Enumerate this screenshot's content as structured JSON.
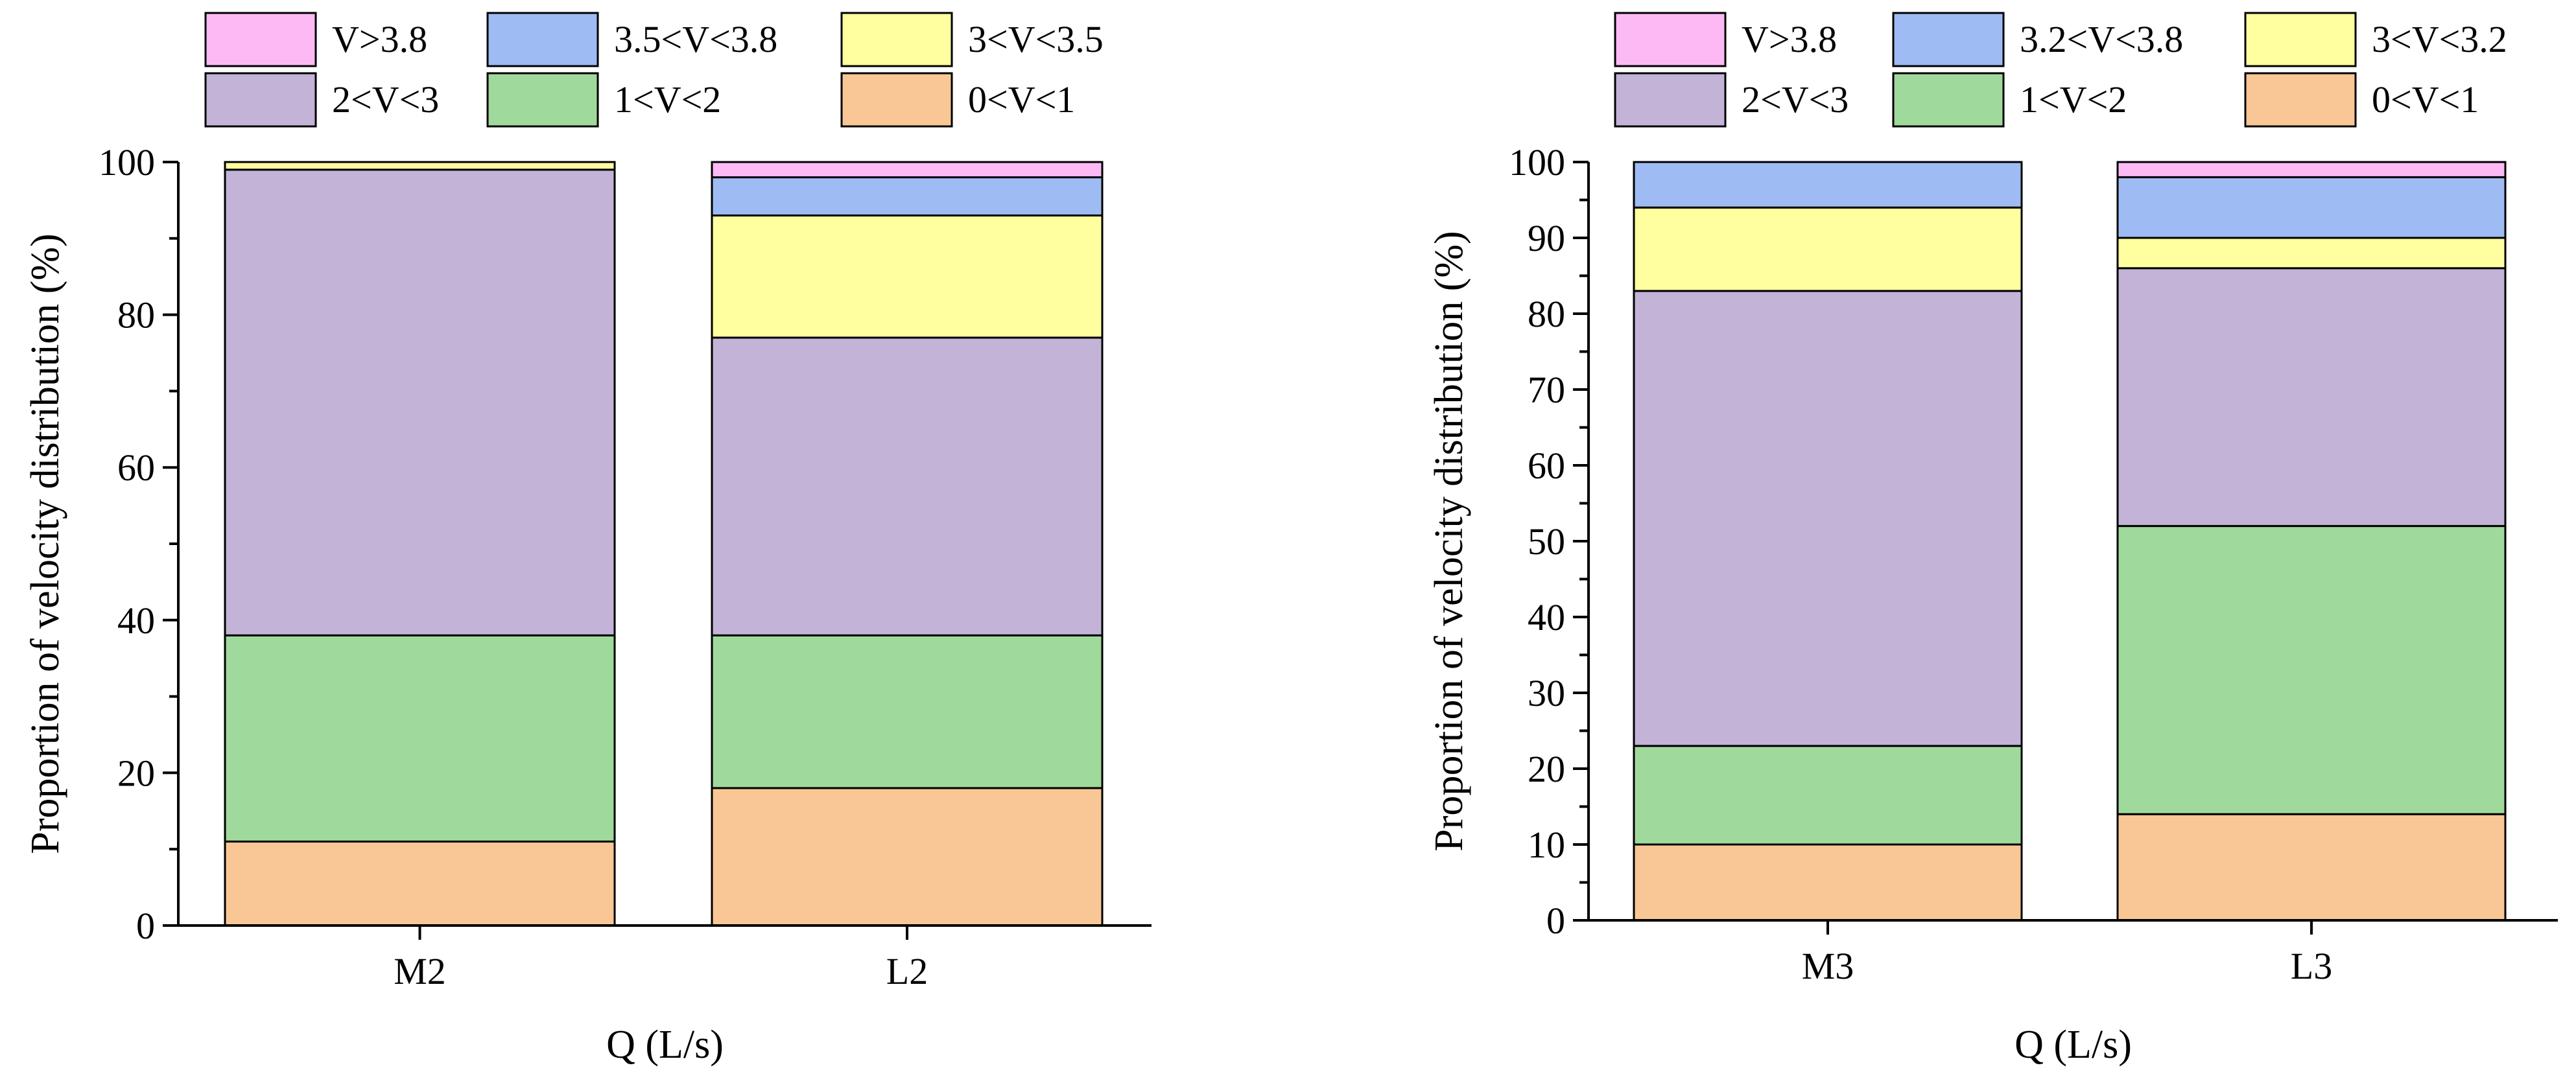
{
  "chart_data": [
    {
      "type": "bar",
      "stacked": true,
      "xlabel": "Q (L/s)",
      "ylabel": "Proportion of velocity distribution (%)",
      "categories": [
        "M2",
        "L2"
      ],
      "ylim": [
        0,
        100
      ],
      "yticks": [
        "0",
        "20",
        "40",
        "60",
        "80",
        "100"
      ],
      "ytick_values": [
        0,
        20,
        40,
        60,
        80,
        100
      ],
      "minor_tick_step": 10,
      "legend_order": [
        "V>3.8",
        "3.5<V<3.8",
        "3<V<3.5",
        "2<V<3",
        "1<V<2",
        "0<V<1"
      ],
      "series": [
        {
          "name": "0<V<1",
          "color": "#F9C795",
          "values": [
            11,
            18
          ]
        },
        {
          "name": "1<V<2",
          "color": "#A0D99C",
          "values": [
            27,
            20
          ]
        },
        {
          "name": "2<V<3",
          "color": "#C3B3D7",
          "values": [
            61,
            39
          ]
        },
        {
          "name": "3<V<3.5",
          "color": "#FFFF9F",
          "values": [
            1,
            16
          ]
        },
        {
          "name": "3.5<V<3.8",
          "color": "#9EBBF3",
          "values": [
            0,
            5
          ]
        },
        {
          "name": "V>3.8",
          "color": "#FDB9F4",
          "values": [
            0,
            2
          ]
        }
      ]
    },
    {
      "type": "bar",
      "stacked": true,
      "xlabel": "Q (L/s)",
      "ylabel": "Proportion of velocity distribution (%)",
      "categories": [
        "M3",
        "L3"
      ],
      "ylim": [
        0,
        100
      ],
      "yticks": [
        "0",
        "10",
        "20",
        "30",
        "40",
        "50",
        "60",
        "70",
        "80",
        "90",
        "100"
      ],
      "ytick_values": [
        0,
        10,
        20,
        30,
        40,
        50,
        60,
        70,
        80,
        90,
        100
      ],
      "minor_tick_step": 5,
      "legend_order": [
        "V>3.8",
        "3.2<V<3.8",
        "3<V<3.2",
        "2<V<3",
        "1<V<2",
        "0<V<1"
      ],
      "series": [
        {
          "name": "0<V<1",
          "color": "#F9C795",
          "values": [
            10,
            14
          ]
        },
        {
          "name": "1<V<2",
          "color": "#A0D99C",
          "values": [
            13,
            38
          ]
        },
        {
          "name": "2<V<3",
          "color": "#C3B3D7",
          "values": [
            60,
            34
          ]
        },
        {
          "name": "3<V<3.2",
          "color": "#FFFF9F",
          "values": [
            11,
            4
          ]
        },
        {
          "name": "3.2<V<3.8",
          "color": "#9EBBF3",
          "values": [
            6,
            8
          ]
        },
        {
          "name": "V>3.8",
          "color": "#FDB9F4",
          "values": [
            0,
            2
          ]
        }
      ]
    }
  ]
}
